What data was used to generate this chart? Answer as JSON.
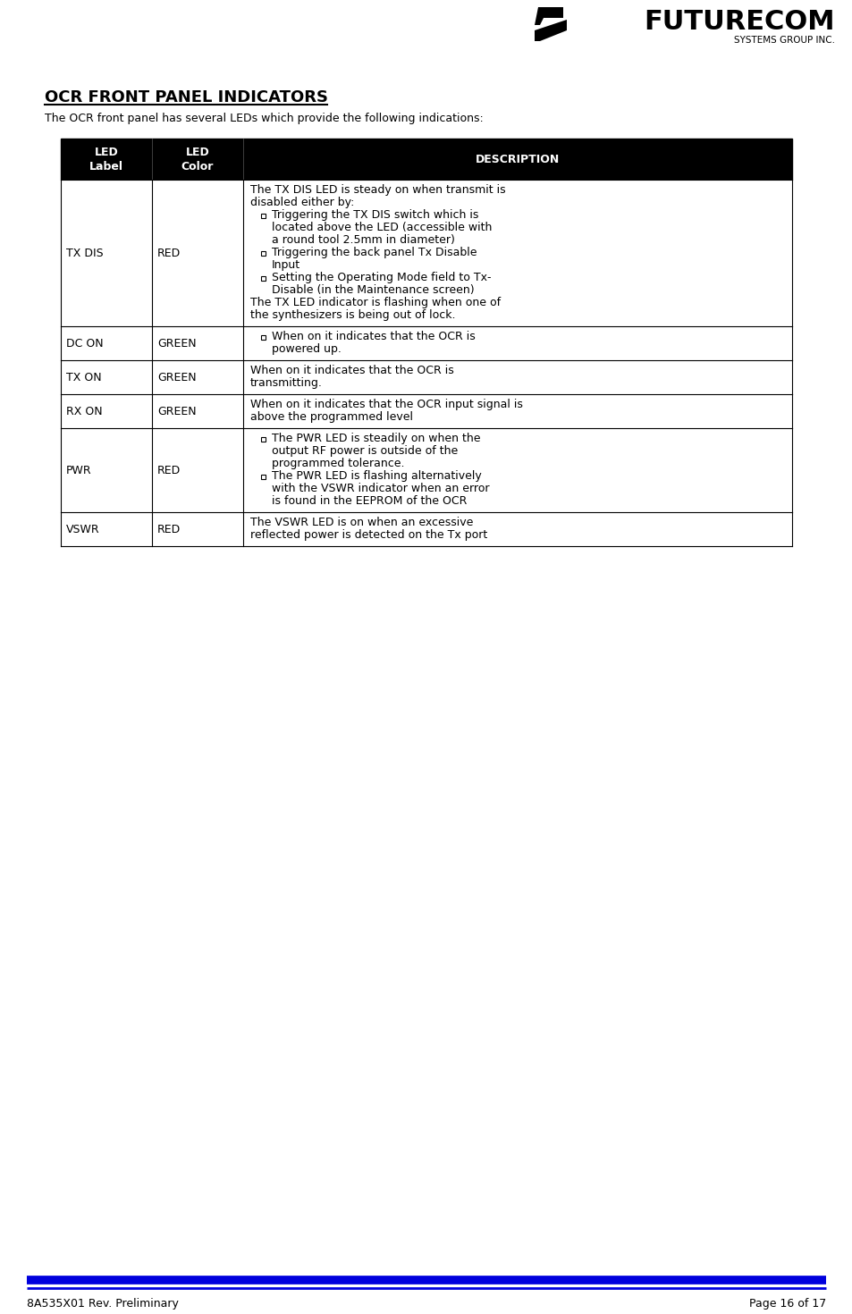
{
  "title": "OCR FRONT PANEL INDICATORS",
  "subtitle": "The OCR front panel has several LEDs which provide the following indications:",
  "header_bg": "#000000",
  "header_fg": "#ffffff",
  "rows": [
    {
      "label": "TX DIS",
      "color": "RED",
      "description_lines": [
        {
          "type": "text",
          "text": "The TX DIS LED is steady on when transmit is"
        },
        {
          "type": "text",
          "text": "disabled either by:"
        },
        {
          "type": "bullet",
          "text": "Triggering the TX DIS switch which is"
        },
        {
          "type": "bullet_cont",
          "text": "located above the LED (accessible with"
        },
        {
          "type": "bullet_cont",
          "text": "a round tool 2.5mm in diameter)"
        },
        {
          "type": "bullet",
          "text": "Triggering the back panel Tx Disable"
        },
        {
          "type": "bullet_cont",
          "text": "Input"
        },
        {
          "type": "bullet",
          "text": "Setting the Operating Mode field to Tx-"
        },
        {
          "type": "bullet_cont",
          "text": "Disable (in the Maintenance screen)"
        },
        {
          "type": "text",
          "text": "The TX LED indicator is flashing when one of"
        },
        {
          "type": "text",
          "text": "the synthesizers is being out of lock."
        }
      ]
    },
    {
      "label": "DC ON",
      "color": "GREEN",
      "description_lines": [
        {
          "type": "bullet",
          "text": "When on it indicates that the OCR is"
        },
        {
          "type": "bullet_cont",
          "text": "powered up."
        }
      ]
    },
    {
      "label": "TX ON",
      "color": "GREEN",
      "description_lines": [
        {
          "type": "text",
          "text": "When on it indicates that the OCR is"
        },
        {
          "type": "text",
          "text": "transmitting."
        }
      ]
    },
    {
      "label": "RX ON",
      "color": "GREEN",
      "description_lines": [
        {
          "type": "text",
          "text": "When on it indicates that the OCR input signal is"
        },
        {
          "type": "text",
          "text": "above the programmed level"
        }
      ]
    },
    {
      "label": "PWR",
      "color": "RED",
      "description_lines": [
        {
          "type": "bullet",
          "text": "The PWR LED is steadily on when the"
        },
        {
          "type": "bullet_cont",
          "text": "output RF power is outside of the"
        },
        {
          "type": "bullet_cont",
          "text": "programmed tolerance."
        },
        {
          "type": "bullet",
          "text": "The PWR LED is flashing alternatively"
        },
        {
          "type": "bullet_cont",
          "text": "with the VSWR indicator when an error"
        },
        {
          "type": "bullet_cont",
          "text": "is found in the EEPROM of the OCR"
        }
      ]
    },
    {
      "label": "VSWR",
      "color": "RED",
      "description_lines": [
        {
          "type": "text",
          "text": "The VSWR LED is on when an excessive"
        },
        {
          "type": "text",
          "text": "reflected power is detected on the Tx port"
        }
      ]
    }
  ],
  "footer_left": "8A535X01 Rev. Preliminary",
  "footer_right": "Page 16 of 17",
  "footer_line_color": "#0000dd",
  "logo_text": "FUTURECOM",
  "logo_sub": "SYSTEMS GROUP INC.",
  "page_bg": "#ffffff",
  "font_size_title": 13,
  "font_size_body": 9,
  "font_size_footer": 9
}
